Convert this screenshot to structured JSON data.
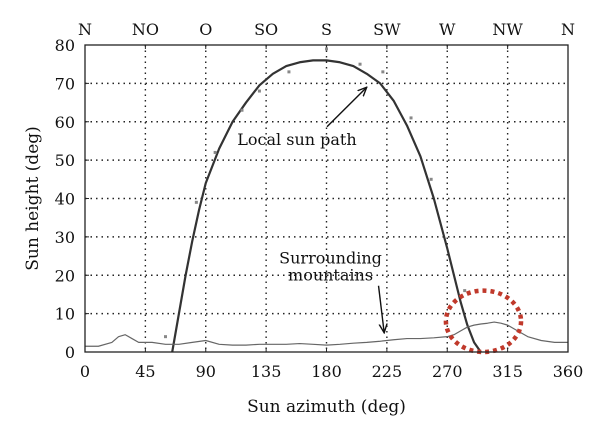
{
  "chart_data": {
    "type": "line",
    "xlabel": "Sun azimuth (deg)",
    "ylabel": "Sun height (deg)",
    "xlim": [
      0,
      360
    ],
    "ylim": [
      0,
      80
    ],
    "x_ticks": [
      0,
      45,
      90,
      135,
      180,
      225,
      270,
      315,
      360
    ],
    "y_ticks": [
      0,
      10,
      20,
      30,
      40,
      50,
      60,
      70,
      80
    ],
    "compass_ticks": [
      {
        "label": "N",
        "azimuth": 0
      },
      {
        "label": "NO",
        "azimuth": 45
      },
      {
        "label": "O",
        "azimuth": 90
      },
      {
        "label": "SO",
        "azimuth": 135
      },
      {
        "label": "S",
        "azimuth": 180
      },
      {
        "label": "SW",
        "azimuth": 225
      },
      {
        "label": "W",
        "azimuth": 270
      },
      {
        "label": "NW",
        "azimuth": 315
      },
      {
        "label": "N",
        "azimuth": 360
      }
    ],
    "grid": "dotted",
    "series": [
      {
        "name": "Local sun path",
        "color": "#333333",
        "x": [
          65,
          70,
          75,
          80,
          85,
          90,
          100,
          110,
          120,
          130,
          140,
          150,
          160,
          170,
          180,
          190,
          200,
          210,
          220,
          230,
          240,
          250,
          260,
          270,
          275,
          280,
          285,
          290,
          295
        ],
        "y": [
          0,
          10,
          20,
          29,
          37,
          44,
          53,
          60,
          65,
          69.5,
          72.5,
          74.5,
          75.5,
          76,
          76,
          75.5,
          74.5,
          72.5,
          70,
          65.5,
          59,
          51,
          40,
          27,
          20,
          13,
          7,
          2.5,
          0
        ]
      },
      {
        "name": "Surrounding mountains",
        "color": "#666666",
        "x": [
          0,
          10,
          20,
          25,
          30,
          35,
          40,
          50,
          60,
          70,
          80,
          90,
          100,
          110,
          120,
          130,
          140,
          150,
          160,
          170,
          180,
          190,
          200,
          210,
          220,
          230,
          240,
          250,
          260,
          270,
          275,
          280,
          285,
          290,
          295,
          300,
          305,
          310,
          315,
          320,
          330,
          340,
          350,
          360
        ],
        "y": [
          1.5,
          1.5,
          2.5,
          4,
          4.5,
          3.5,
          2.5,
          2.5,
          2,
          2,
          2.5,
          3,
          2,
          1.8,
          1.8,
          2,
          2,
          2,
          2.2,
          2,
          1.8,
          2,
          2.3,
          2.5,
          2.8,
          3.2,
          3.5,
          3.5,
          3.7,
          4,
          4.5,
          5.5,
          6.5,
          7,
          7.3,
          7.5,
          7.8,
          7.5,
          7,
          6,
          4,
          3,
          2.5,
          2.5
        ]
      }
    ],
    "measured_points": {
      "x": [
        60,
        83,
        97,
        117,
        130,
        152,
        180,
        205,
        222,
        243,
        258,
        283
      ],
      "y": [
        4,
        39,
        52,
        63,
        68,
        73,
        79,
        75,
        73,
        61,
        45,
        16
      ]
    },
    "annotations": [
      {
        "text": "Local sun path",
        "x": 158,
        "y": 54,
        "points_to": {
          "x": 210,
          "y": 69
        }
      },
      {
        "text_lines": [
          "Surrounding",
          "mountains"
        ],
        "x": 183,
        "y": 23,
        "points_to": {
          "x": 223,
          "y": 5
        }
      }
    ],
    "highlight_ellipse": {
      "center": {
        "x": 297,
        "y": 8
      },
      "radius_deg_x": 28,
      "radius_deg_y": 8,
      "color": "#c0392b",
      "style": "dotted"
    }
  }
}
